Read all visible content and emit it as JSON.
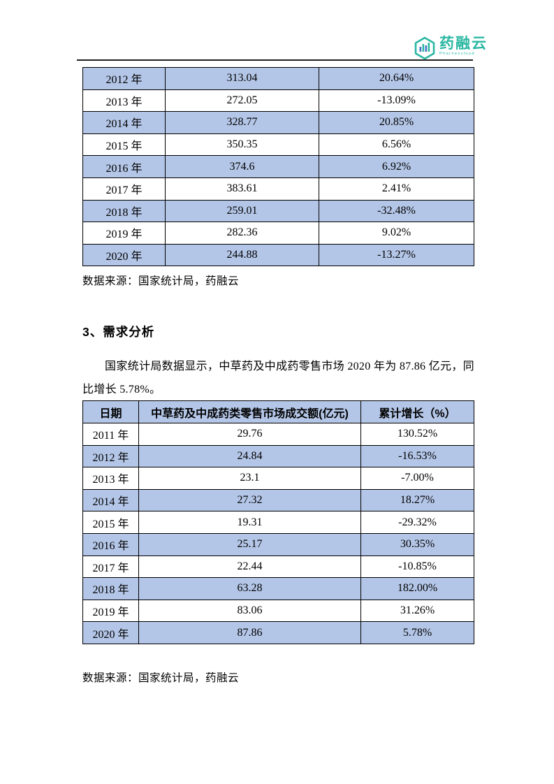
{
  "logo": {
    "brand": "药融云",
    "subtext": "Pharnexcloud"
  },
  "colors": {
    "accent_teal": "#2ab7a2",
    "row_shade": "#b4c6e7",
    "border": "#000000"
  },
  "table1": {
    "rows": [
      [
        "2012 年",
        "313.04",
        "20.64%"
      ],
      [
        "2013 年",
        "272.05",
        "-13.09%"
      ],
      [
        "2014 年",
        "328.77",
        "20.85%"
      ],
      [
        "2015 年",
        "350.35",
        "6.56%"
      ],
      [
        "2016 年",
        "374.6",
        "6.92%"
      ],
      [
        "2017 年",
        "383.61",
        "2.41%"
      ],
      [
        "2018 年",
        "259.01",
        "-32.48%"
      ],
      [
        "2019 年",
        "282.36",
        "9.02%"
      ],
      [
        "2020 年",
        "244.88",
        "-13.27%"
      ]
    ]
  },
  "source1": "数据来源：国家统计局，药融云",
  "section_heading": "3、需求分析",
  "paragraph": "国家统计局数据显示，中草药及中成药零售市场 2020 年为 87.86 亿元，同比增长 5.78%。",
  "table2": {
    "headers": [
      "日期",
      "中草药及中成药类零售市场成交额(亿元)",
      "累计增长（%）"
    ],
    "rows": [
      [
        "2011 年",
        "29.76",
        "130.52%"
      ],
      [
        "2012 年",
        "24.84",
        "-16.53%"
      ],
      [
        "2013 年",
        "23.1",
        "-7.00%"
      ],
      [
        "2014 年",
        "27.32",
        "18.27%"
      ],
      [
        "2015 年",
        "19.31",
        "-29.32%"
      ],
      [
        "2016 年",
        "25.17",
        "30.35%"
      ],
      [
        "2017 年",
        "22.44",
        "-10.85%"
      ],
      [
        "2018 年",
        "63.28",
        "182.00%"
      ],
      [
        "2019 年",
        "83.06",
        "31.26%"
      ],
      [
        "2020 年",
        "87.86",
        "5.78%"
      ]
    ]
  },
  "source2": "数据来源：国家统计局，药融云"
}
